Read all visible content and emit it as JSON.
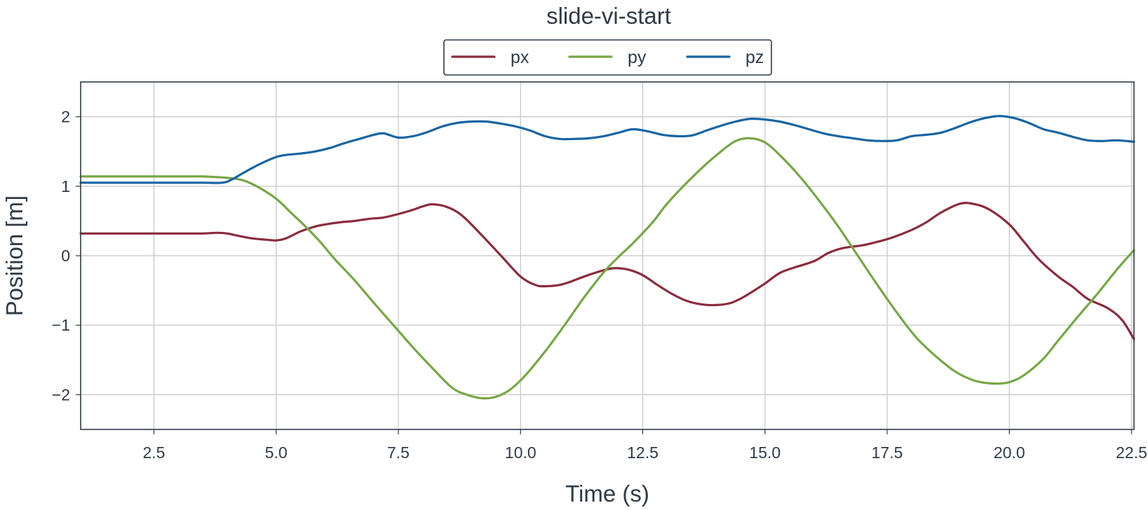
{
  "chart_data": {
    "type": "line",
    "title": "slide-vi-start",
    "xlabel": "Time (s)",
    "ylabel": "Position [m]",
    "xlim": [
      1.0,
      22.55
    ],
    "ylim": [
      -2.5,
      2.5
    ],
    "xticks": [
      2.5,
      5.0,
      7.5,
      10.0,
      12.5,
      15.0,
      17.5,
      20.0,
      22.5
    ],
    "xtick_labels": [
      "2.5",
      "5.0",
      "7.5",
      "10.0",
      "12.5",
      "15.0",
      "17.5",
      "20.0",
      "22.5"
    ],
    "yticks": [
      2,
      1,
      0,
      -1,
      -2
    ],
    "ytick_labels": [
      "2",
      "1",
      "0",
      "−1",
      "−2"
    ],
    "grid": true,
    "legend_position": "top-center",
    "series": [
      {
        "name": "px",
        "color": "#8b2c3c",
        "x": [
          1.0,
          2.0,
          3.0,
          3.5,
          3.8,
          4.0,
          4.2,
          4.5,
          4.8,
          5.0,
          5.2,
          5.5,
          5.8,
          6.0,
          6.3,
          6.6,
          6.9,
          7.2,
          7.5,
          7.8,
          8.0,
          8.2,
          8.5,
          8.8,
          9.2,
          9.6,
          10.0,
          10.3,
          10.5,
          10.8,
          11.0,
          11.3,
          11.6,
          11.9,
          12.2,
          12.5,
          12.8,
          13.1,
          13.4,
          13.7,
          14.0,
          14.3,
          14.6,
          15.0,
          15.3,
          15.6,
          16.0,
          16.3,
          16.6,
          17.0,
          17.3,
          17.6,
          18.0,
          18.3,
          18.6,
          19.0,
          19.3,
          19.6,
          20.0,
          20.3,
          20.6,
          21.0,
          21.3,
          21.6,
          22.0,
          22.3,
          22.55
        ],
        "y": [
          0.32,
          0.32,
          0.32,
          0.32,
          0.33,
          0.32,
          0.29,
          0.25,
          0.23,
          0.22,
          0.25,
          0.35,
          0.42,
          0.45,
          0.48,
          0.5,
          0.53,
          0.55,
          0.6,
          0.66,
          0.71,
          0.74,
          0.7,
          0.58,
          0.3,
          0.0,
          -0.3,
          -0.42,
          -0.44,
          -0.42,
          -0.38,
          -0.3,
          -0.23,
          -0.18,
          -0.2,
          -0.28,
          -0.42,
          -0.55,
          -0.65,
          -0.7,
          -0.71,
          -0.68,
          -0.58,
          -0.4,
          -0.25,
          -0.17,
          -0.08,
          0.04,
          0.11,
          0.15,
          0.2,
          0.26,
          0.37,
          0.48,
          0.62,
          0.75,
          0.74,
          0.66,
          0.45,
          0.2,
          -0.05,
          -0.3,
          -0.45,
          -0.62,
          -0.75,
          -0.92,
          -1.2
        ]
      },
      {
        "name": "py",
        "color": "#77a746",
        "x": [
          1.0,
          2.0,
          3.0,
          3.5,
          3.8,
          4.0,
          4.3,
          4.6,
          5.0,
          5.3,
          5.6,
          5.9,
          6.2,
          6.6,
          7.0,
          7.4,
          7.8,
          8.2,
          8.6,
          8.9,
          9.2,
          9.5,
          9.8,
          10.1,
          10.5,
          10.9,
          11.3,
          11.7,
          12.0,
          12.3,
          12.7,
          13.0,
          13.4,
          13.8,
          14.1,
          14.4,
          14.7,
          15.0,
          15.3,
          15.7,
          16.1,
          16.5,
          16.9,
          17.3,
          17.7,
          18.1,
          18.5,
          18.9,
          19.3,
          19.7,
          20.0,
          20.3,
          20.7,
          21.0,
          21.4,
          21.8,
          22.2,
          22.55
        ],
        "y": [
          1.14,
          1.14,
          1.14,
          1.14,
          1.13,
          1.12,
          1.09,
          1.0,
          0.82,
          0.62,
          0.42,
          0.2,
          -0.05,
          -0.35,
          -0.68,
          -1.0,
          -1.32,
          -1.62,
          -1.9,
          -2.0,
          -2.05,
          -2.03,
          -1.92,
          -1.72,
          -1.38,
          -1.0,
          -0.6,
          -0.24,
          -0.02,
          0.18,
          0.48,
          0.75,
          1.05,
          1.32,
          1.5,
          1.65,
          1.69,
          1.63,
          1.45,
          1.15,
          0.8,
          0.42,
          0.0,
          -0.42,
          -0.82,
          -1.18,
          -1.45,
          -1.67,
          -1.8,
          -1.84,
          -1.82,
          -1.72,
          -1.48,
          -1.22,
          -0.88,
          -0.55,
          -0.2,
          0.08
        ]
      },
      {
        "name": "pz",
        "color": "#1665a3",
        "x": [
          1.0,
          2.0,
          3.0,
          3.5,
          3.9,
          4.1,
          4.4,
          4.7,
          5.0,
          5.2,
          5.5,
          5.8,
          6.1,
          6.4,
          6.7,
          7.0,
          7.2,
          7.5,
          7.8,
          8.1,
          8.4,
          8.7,
          9.0,
          9.3,
          9.6,
          9.9,
          10.2,
          10.5,
          10.8,
          11.1,
          11.4,
          11.7,
          12.0,
          12.3,
          12.6,
          12.9,
          13.2,
          13.5,
          13.8,
          14.1,
          14.4,
          14.7,
          15.0,
          15.3,
          15.6,
          15.9,
          16.2,
          16.5,
          16.8,
          17.1,
          17.4,
          17.7,
          18.0,
          18.3,
          18.6,
          18.9,
          19.2,
          19.5,
          19.8,
          20.1,
          20.4,
          20.7,
          21.0,
          21.3,
          21.6,
          21.9,
          22.2,
          22.55
        ],
        "y": [
          1.05,
          1.05,
          1.05,
          1.05,
          1.05,
          1.1,
          1.22,
          1.33,
          1.42,
          1.45,
          1.47,
          1.5,
          1.55,
          1.62,
          1.68,
          1.74,
          1.76,
          1.7,
          1.72,
          1.78,
          1.86,
          1.91,
          1.93,
          1.93,
          1.9,
          1.86,
          1.8,
          1.72,
          1.68,
          1.68,
          1.69,
          1.72,
          1.77,
          1.82,
          1.79,
          1.74,
          1.72,
          1.73,
          1.8,
          1.87,
          1.93,
          1.97,
          1.96,
          1.93,
          1.88,
          1.82,
          1.76,
          1.72,
          1.69,
          1.66,
          1.65,
          1.66,
          1.72,
          1.74,
          1.77,
          1.84,
          1.92,
          1.98,
          2.01,
          1.98,
          1.91,
          1.82,
          1.77,
          1.71,
          1.66,
          1.65,
          1.66,
          1.64
        ]
      }
    ]
  }
}
